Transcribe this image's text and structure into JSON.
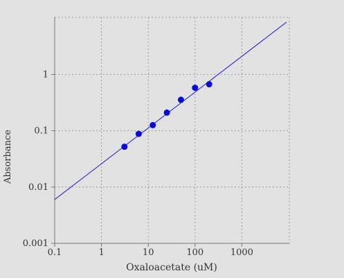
{
  "chart_data": {
    "type": "scatter",
    "title": "",
    "xlabel": "Oxaloacetate (uM)",
    "ylabel": "Absorbance",
    "x_scale": "log",
    "y_scale": "log",
    "xlim": [
      0.1,
      10000
    ],
    "ylim": [
      0.001,
      10
    ],
    "x_ticks": [
      0.1,
      1,
      10,
      100,
      1000
    ],
    "x_tick_labels": [
      "0.1",
      "1",
      "10",
      "100",
      "1000"
    ],
    "y_ticks": [
      0.001,
      0.01,
      0.1,
      1
    ],
    "y_tick_labels": [
      "0.001",
      "0.01",
      "0.1",
      "1"
    ],
    "grid": true,
    "legend": "none",
    "points": [
      {
        "x": 3.1,
        "y": 0.052
      },
      {
        "x": 6.25,
        "y": 0.088
      },
      {
        "x": 12.5,
        "y": 0.126
      },
      {
        "x": 25,
        "y": 0.21
      },
      {
        "x": 50,
        "y": 0.355
      },
      {
        "x": 100,
        "y": 0.58
      },
      {
        "x": 200,
        "y": 0.67
      }
    ],
    "fit_line": {
      "x_start": 0.1,
      "y_start": 0.006,
      "x_end": 9000,
      "y_end": 8.5
    },
    "colors": {
      "background": "#e2e2e2",
      "points": "#0a0ad8",
      "line": "#1a1adc",
      "grid": "#9a9a9a",
      "axis": "#777777",
      "text": "#333333"
    }
  }
}
